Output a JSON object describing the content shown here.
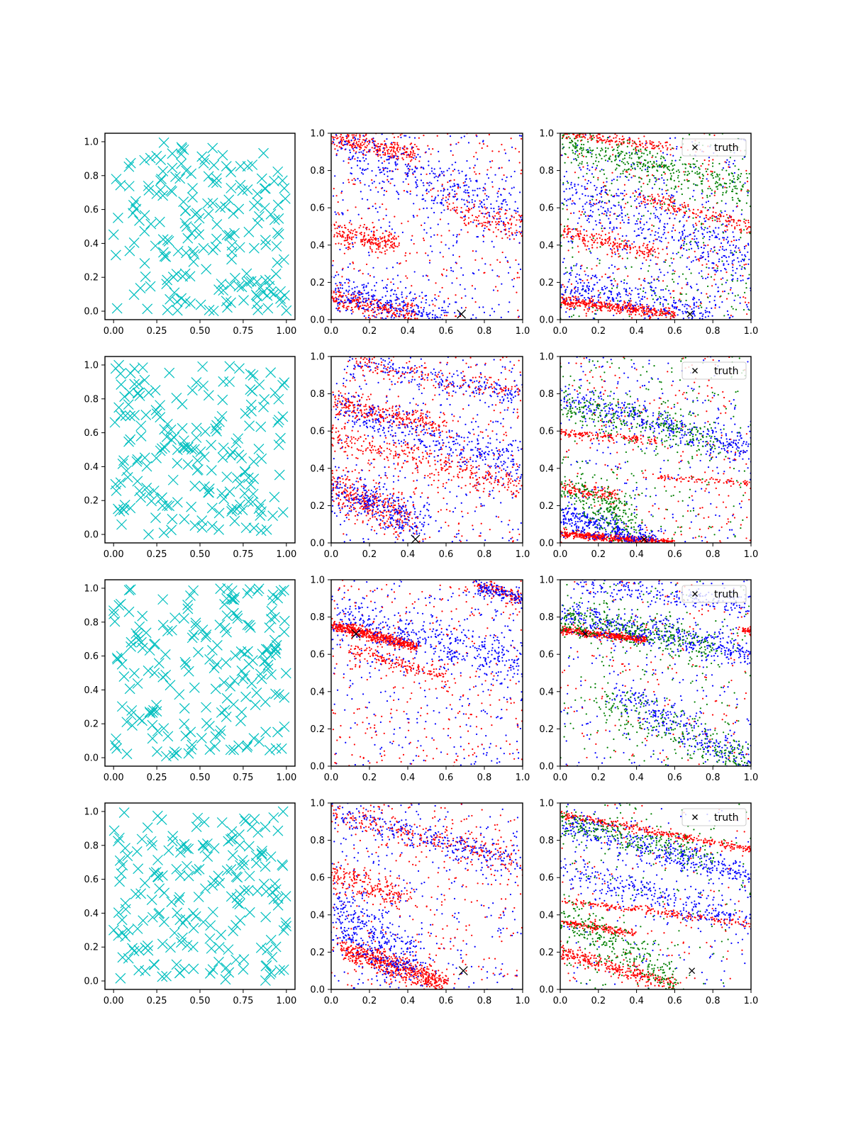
{
  "figure": {
    "layout": "4x3 grid of scatter panels",
    "colors": {
      "prior": "#00bfbf",
      "series_a": "#0000ff",
      "series_b": "#ff0000",
      "series_c": "#008000",
      "truth": "#000000"
    }
  },
  "legend_label": "truth",
  "rows": [
    {
      "truth": [
        0.68,
        0.03
      ]
    },
    {
      "truth": [
        0.44,
        0.02
      ]
    },
    {
      "truth": [
        0.13,
        0.71
      ]
    },
    {
      "truth": [
        0.69,
        0.1
      ]
    }
  ],
  "chart_data": [
    {
      "panel": "r1c1",
      "type": "scatter",
      "marker": "x",
      "color": "#00bfbf",
      "series_count": 1,
      "approx_points": 200,
      "distribution": "uniform",
      "xlim": [
        -0.05,
        1.05
      ],
      "ylim": [
        -0.05,
        1.05
      ],
      "xticks": [
        "0.00",
        "0.25",
        "0.50",
        "0.75",
        "1.00"
      ],
      "yticks": [
        "0.0",
        "0.2",
        "0.4",
        "0.6",
        "0.8",
        "1.0"
      ]
    },
    {
      "panel": "r1c2",
      "type": "scatter",
      "marker": "dot",
      "series_colors": [
        "#0000ff",
        "#ff0000"
      ],
      "truth": [
        0.68,
        0.03
      ],
      "xlim": [
        0,
        1
      ],
      "ylim": [
        0,
        1
      ],
      "xticks": [
        "0.0",
        "0.2",
        "0.4",
        "0.6",
        "0.8",
        "1.0"
      ],
      "yticks": [
        "0.0",
        "0.2",
        "0.4",
        "0.6",
        "0.8",
        "1.0"
      ],
      "bands": [
        {
          "x0": 0.0,
          "y0": 0.98,
          "x1": 0.45,
          "y1": 0.88,
          "spread": 0.03,
          "n": 260,
          "color": "#ff0000"
        },
        {
          "x0": 0.0,
          "y0": 0.47,
          "x1": 0.35,
          "y1": 0.4,
          "spread": 0.03,
          "n": 220,
          "color": "#ff0000"
        },
        {
          "x0": 0.0,
          "y0": 0.12,
          "x1": 0.45,
          "y1": 0.02,
          "spread": 0.03,
          "n": 260,
          "color": "#ff0000"
        },
        {
          "x0": 0.0,
          "y0": 0.95,
          "x1": 1.0,
          "y1": 0.55,
          "spread": 0.07,
          "n": 380,
          "color": "#0000ff"
        },
        {
          "x0": 0.0,
          "y0": 0.15,
          "x1": 0.6,
          "y1": 0.02,
          "spread": 0.05,
          "n": 300,
          "color": "#0000ff"
        },
        {
          "x0": 0.6,
          "y0": 0.6,
          "x1": 1.0,
          "y1": 0.5,
          "spread": 0.04,
          "n": 120,
          "color": "#ff0000"
        }
      ],
      "noise": {
        "n": 550,
        "colors": [
          "#0000ff",
          "#ff0000"
        ]
      }
    },
    {
      "panel": "r1c3",
      "type": "scatter",
      "marker": "dot",
      "series_colors": [
        "#0000ff",
        "#ff0000",
        "#008000"
      ],
      "truth": [
        0.68,
        0.03
      ],
      "legend": "top-right",
      "xlim": [
        0,
        1
      ],
      "ylim": [
        0,
        1
      ],
      "xticks": [
        "0.0",
        "0.2",
        "0.4",
        "0.6",
        "0.8",
        "1.0"
      ],
      "yticks": [
        "0.0",
        "0.2",
        "0.4",
        "0.6",
        "0.8",
        "1.0"
      ],
      "bands": [
        {
          "x0": 0.0,
          "y0": 0.1,
          "x1": 0.6,
          "y1": 0.03,
          "spread": 0.015,
          "n": 400,
          "color": "#ff0000"
        },
        {
          "x0": 0.0,
          "y0": 0.48,
          "x1": 0.5,
          "y1": 0.35,
          "spread": 0.02,
          "n": 180,
          "color": "#ff0000"
        },
        {
          "x0": 0.4,
          "y0": 0.66,
          "x1": 1.0,
          "y1": 0.5,
          "spread": 0.02,
          "n": 160,
          "color": "#ff0000"
        },
        {
          "x0": 0.0,
          "y0": 1.0,
          "x1": 0.6,
          "y1": 0.92,
          "spread": 0.015,
          "n": 160,
          "color": "#ff0000"
        },
        {
          "x0": 0.0,
          "y0": 0.95,
          "x1": 1.0,
          "y1": 0.7,
          "spread": 0.05,
          "n": 400,
          "color": "#008000"
        },
        {
          "x0": 0.0,
          "y0": 0.7,
          "x1": 1.0,
          "y1": 0.3,
          "spread": 0.08,
          "n": 400,
          "color": "#0000ff"
        },
        {
          "x0": 0.0,
          "y0": 0.2,
          "x1": 0.8,
          "y1": 0.02,
          "spread": 0.05,
          "n": 300,
          "color": "#0000ff"
        }
      ],
      "noise": {
        "n": 900,
        "colors": [
          "#0000ff",
          "#008000",
          "#ff0000"
        ]
      }
    },
    {
      "panel": "r2c1",
      "type": "scatter",
      "marker": "x",
      "color": "#00bfbf",
      "series_count": 1,
      "approx_points": 200,
      "distribution": "uniform",
      "xlim": [
        -0.05,
        1.05
      ],
      "ylim": [
        -0.05,
        1.05
      ],
      "xticks": [
        "0.00",
        "0.25",
        "0.50",
        "0.75",
        "1.00"
      ],
      "yticks": [
        "0.0",
        "0.2",
        "0.4",
        "0.6",
        "0.8",
        "1.0"
      ]
    },
    {
      "panel": "r2c2",
      "type": "scatter",
      "marker": "dot",
      "series_colors": [
        "#0000ff",
        "#ff0000"
      ],
      "truth": [
        0.44,
        0.02
      ],
      "xlim": [
        0,
        1
      ],
      "ylim": [
        0,
        1
      ],
      "xticks": [
        "0.0",
        "0.2",
        "0.4",
        "0.6",
        "0.8",
        "1.0"
      ],
      "yticks": [
        "0.0",
        "0.2",
        "0.4",
        "0.6",
        "0.8",
        "1.0"
      ],
      "bands": [
        {
          "x0": 0.0,
          "y0": 0.76,
          "x1": 0.6,
          "y1": 0.62,
          "spread": 0.03,
          "n": 280,
          "color": "#ff0000"
        },
        {
          "x0": 0.0,
          "y0": 0.58,
          "x1": 1.0,
          "y1": 0.3,
          "spread": 0.04,
          "n": 320,
          "color": "#ff0000"
        },
        {
          "x0": 0.0,
          "y0": 0.3,
          "x1": 0.4,
          "y1": 0.12,
          "spread": 0.05,
          "n": 300,
          "color": "#ff0000"
        },
        {
          "x0": 0.1,
          "y0": 0.98,
          "x1": 1.0,
          "y1": 0.78,
          "spread": 0.03,
          "n": 200,
          "color": "#0000ff"
        },
        {
          "x0": 0.0,
          "y0": 0.75,
          "x1": 1.0,
          "y1": 0.4,
          "spread": 0.05,
          "n": 350,
          "color": "#0000ff"
        },
        {
          "x0": 0.0,
          "y0": 0.3,
          "x1": 0.5,
          "y1": 0.1,
          "spread": 0.06,
          "n": 300,
          "color": "#0000ff"
        },
        {
          "x0": 0.1,
          "y0": 0.98,
          "x1": 1.0,
          "y1": 0.8,
          "spread": 0.03,
          "n": 150,
          "color": "#ff0000"
        }
      ],
      "noise": {
        "n": 600,
        "colors": [
          "#0000ff",
          "#ff0000"
        ]
      }
    },
    {
      "panel": "r2c3",
      "type": "scatter",
      "marker": "dot",
      "series_colors": [
        "#0000ff",
        "#ff0000",
        "#008000"
      ],
      "truth": [
        0.44,
        0.02
      ],
      "legend": "top-right",
      "xlim": [
        0,
        1
      ],
      "ylim": [
        0,
        1
      ],
      "xticks": [
        "0.0",
        "0.2",
        "0.4",
        "0.6",
        "0.8",
        "1.0"
      ],
      "yticks": [
        "0.0",
        "0.2",
        "0.4",
        "0.6",
        "0.8",
        "1.0"
      ],
      "bands": [
        {
          "x0": 0.0,
          "y0": 0.05,
          "x1": 0.6,
          "y1": 0.0,
          "spread": 0.01,
          "n": 500,
          "color": "#ff0000"
        },
        {
          "x0": 0.0,
          "y0": 0.59,
          "x1": 0.5,
          "y1": 0.55,
          "spread": 0.01,
          "n": 150,
          "color": "#ff0000"
        },
        {
          "x0": 0.0,
          "y0": 0.3,
          "x1": 0.3,
          "y1": 0.25,
          "spread": 0.02,
          "n": 120,
          "color": "#ff0000"
        },
        {
          "x0": 0.5,
          "y0": 0.35,
          "x1": 1.0,
          "y1": 0.32,
          "spread": 0.01,
          "n": 80,
          "color": "#ff0000"
        },
        {
          "x0": 0.0,
          "y0": 0.78,
          "x1": 1.0,
          "y1": 0.5,
          "spread": 0.04,
          "n": 380,
          "color": "#0000ff"
        },
        {
          "x0": 0.0,
          "y0": 0.15,
          "x1": 0.5,
          "y1": 0.0,
          "spread": 0.04,
          "n": 350,
          "color": "#0000ff"
        },
        {
          "x0": 0.0,
          "y0": 0.75,
          "x1": 0.8,
          "y1": 0.55,
          "spread": 0.05,
          "n": 280,
          "color": "#008000"
        },
        {
          "x0": 0.0,
          "y0": 0.3,
          "x1": 0.4,
          "y1": 0.1,
          "spread": 0.06,
          "n": 250,
          "color": "#008000"
        }
      ],
      "noise": {
        "n": 700,
        "colors": [
          "#0000ff",
          "#008000",
          "#ff0000"
        ]
      }
    },
    {
      "panel": "r3c1",
      "type": "scatter",
      "marker": "x",
      "color": "#00bfbf",
      "series_count": 1,
      "approx_points": 200,
      "distribution": "uniform",
      "xlim": [
        -0.05,
        1.05
      ],
      "ylim": [
        -0.05,
        1.05
      ],
      "xticks": [
        "0.00",
        "0.25",
        "0.50",
        "0.75",
        "1.00"
      ],
      "yticks": [
        "0.0",
        "0.2",
        "0.4",
        "0.6",
        "0.8",
        "1.0"
      ]
    },
    {
      "panel": "r3c2",
      "type": "scatter",
      "marker": "dot",
      "series_colors": [
        "#0000ff",
        "#ff0000"
      ],
      "truth": [
        0.13,
        0.71
      ],
      "xlim": [
        0,
        1
      ],
      "ylim": [
        0,
        1
      ],
      "xticks": [
        "0.0",
        "0.2",
        "0.4",
        "0.6",
        "0.8",
        "1.0"
      ],
      "yticks": [
        "0.0",
        "0.2",
        "0.4",
        "0.6",
        "0.8",
        "1.0"
      ],
      "bands": [
        {
          "x0": 0.0,
          "y0": 0.76,
          "x1": 0.45,
          "y1": 0.64,
          "spread": 0.015,
          "n": 550,
          "color": "#ff0000"
        },
        {
          "x0": 0.1,
          "y0": 0.62,
          "x1": 0.6,
          "y1": 0.48,
          "spread": 0.02,
          "n": 150,
          "color": "#ff0000"
        },
        {
          "x0": 0.75,
          "y0": 0.97,
          "x1": 1.0,
          "y1": 0.9,
          "spread": 0.02,
          "n": 120,
          "color": "#ff0000"
        },
        {
          "x0": 0.0,
          "y0": 0.8,
          "x1": 1.0,
          "y1": 0.55,
          "spread": 0.06,
          "n": 400,
          "color": "#0000ff"
        },
        {
          "x0": 0.75,
          "y0": 0.97,
          "x1": 1.0,
          "y1": 0.9,
          "spread": 0.02,
          "n": 120,
          "color": "#0000ff"
        }
      ],
      "noise": {
        "n": 650,
        "colors": [
          "#0000ff",
          "#ff0000"
        ]
      }
    },
    {
      "panel": "r3c3",
      "type": "scatter",
      "marker": "dot",
      "series_colors": [
        "#0000ff",
        "#ff0000",
        "#008000"
      ],
      "truth": [
        0.13,
        0.71
      ],
      "legend": "top-right",
      "xlim": [
        0,
        1
      ],
      "ylim": [
        0,
        1
      ],
      "xticks": [
        "0.0",
        "0.2",
        "0.4",
        "0.6",
        "0.8",
        "1.0"
      ],
      "yticks": [
        "0.0",
        "0.2",
        "0.4",
        "0.6",
        "0.8",
        "1.0"
      ],
      "bands": [
        {
          "x0": 0.0,
          "y0": 0.73,
          "x1": 0.45,
          "y1": 0.68,
          "spread": 0.01,
          "n": 450,
          "color": "#ff0000"
        },
        {
          "x0": 0.95,
          "y0": 0.73,
          "x1": 1.0,
          "y1": 0.72,
          "spread": 0.01,
          "n": 40,
          "color": "#ff0000"
        },
        {
          "x0": 0.0,
          "y0": 0.82,
          "x1": 1.0,
          "y1": 0.6,
          "spread": 0.04,
          "n": 450,
          "color": "#0000ff"
        },
        {
          "x0": 0.1,
          "y0": 0.98,
          "x1": 1.0,
          "y1": 0.86,
          "spread": 0.03,
          "n": 220,
          "color": "#0000ff"
        },
        {
          "x0": 0.3,
          "y0": 0.4,
          "x1": 1.0,
          "y1": 0.0,
          "spread": 0.05,
          "n": 300,
          "color": "#0000ff"
        },
        {
          "x0": 0.0,
          "y0": 0.8,
          "x1": 0.8,
          "y1": 0.65,
          "spread": 0.05,
          "n": 350,
          "color": "#008000"
        },
        {
          "x0": 0.2,
          "y0": 0.35,
          "x1": 1.0,
          "y1": 0.02,
          "spread": 0.06,
          "n": 250,
          "color": "#008000"
        }
      ],
      "noise": {
        "n": 550,
        "colors": [
          "#0000ff",
          "#008000",
          "#ff0000"
        ]
      }
    },
    {
      "panel": "r4c1",
      "type": "scatter",
      "marker": "x",
      "color": "#00bfbf",
      "series_count": 1,
      "approx_points": 200,
      "distribution": "uniform",
      "xlim": [
        -0.05,
        1.05
      ],
      "ylim": [
        -0.05,
        1.05
      ],
      "xticks": [
        "0.00",
        "0.25",
        "0.50",
        "0.75",
        "1.00"
      ],
      "yticks": [
        "0.0",
        "0.2",
        "0.4",
        "0.6",
        "0.8",
        "1.0"
      ]
    },
    {
      "panel": "r4c2",
      "type": "scatter",
      "marker": "dot",
      "series_colors": [
        "#0000ff",
        "#ff0000"
      ],
      "truth": [
        0.69,
        0.1
      ],
      "xlim": [
        0,
        1
      ],
      "ylim": [
        0,
        1
      ],
      "xticks": [
        "0.0",
        "0.2",
        "0.4",
        "0.6",
        "0.8",
        "1.0"
      ],
      "yticks": [
        "0.0",
        "0.2",
        "0.4",
        "0.6",
        "0.8",
        "1.0"
      ],
      "bands": [
        {
          "x0": 0.05,
          "y0": 0.22,
          "x1": 0.6,
          "y1": 0.03,
          "spread": 0.03,
          "n": 600,
          "color": "#ff0000"
        },
        {
          "x0": 0.0,
          "y0": 0.95,
          "x1": 1.0,
          "y1": 0.68,
          "spread": 0.04,
          "n": 250,
          "color": "#ff0000"
        },
        {
          "x0": 0.0,
          "y0": 0.95,
          "x1": 1.0,
          "y1": 0.68,
          "spread": 0.04,
          "n": 250,
          "color": "#0000ff"
        },
        {
          "x0": 0.0,
          "y0": 0.4,
          "x1": 0.45,
          "y1": 0.1,
          "spread": 0.08,
          "n": 400,
          "color": "#0000ff"
        },
        {
          "x0": 0.0,
          "y0": 0.62,
          "x1": 0.4,
          "y1": 0.48,
          "spread": 0.04,
          "n": 200,
          "color": "#ff0000"
        }
      ],
      "noise": {
        "n": 550,
        "colors": [
          "#0000ff",
          "#ff0000"
        ]
      }
    },
    {
      "panel": "r4c3",
      "type": "scatter",
      "marker": "dot",
      "series_colors": [
        "#0000ff",
        "#ff0000",
        "#008000"
      ],
      "truth": [
        0.69,
        0.1
      ],
      "legend": "top-right",
      "xlim": [
        0,
        1
      ],
      "ylim": [
        0,
        1
      ],
      "xticks": [
        "0.0",
        "0.2",
        "0.4",
        "0.6",
        "0.8",
        "1.0"
      ],
      "yticks": [
        "0.0",
        "0.2",
        "0.4",
        "0.6",
        "0.8",
        "1.0"
      ],
      "bands": [
        {
          "x0": 0.0,
          "y0": 0.94,
          "x1": 1.0,
          "y1": 0.75,
          "spread": 0.01,
          "n": 300,
          "color": "#ff0000"
        },
        {
          "x0": 0.0,
          "y0": 0.48,
          "x1": 1.0,
          "y1": 0.35,
          "spread": 0.01,
          "n": 200,
          "color": "#ff0000"
        },
        {
          "x0": 0.0,
          "y0": 0.36,
          "x1": 0.4,
          "y1": 0.3,
          "spread": 0.01,
          "n": 180,
          "color": "#ff0000"
        },
        {
          "x0": 0.0,
          "y0": 0.2,
          "x1": 0.6,
          "y1": 0.02,
          "spread": 0.02,
          "n": 300,
          "color": "#ff0000"
        },
        {
          "x0": 0.0,
          "y0": 0.9,
          "x1": 1.0,
          "y1": 0.6,
          "spread": 0.04,
          "n": 400,
          "color": "#0000ff"
        },
        {
          "x0": 0.0,
          "y0": 0.65,
          "x1": 1.0,
          "y1": 0.35,
          "spread": 0.05,
          "n": 300,
          "color": "#0000ff"
        },
        {
          "x0": 0.0,
          "y0": 0.9,
          "x1": 0.8,
          "y1": 0.7,
          "spread": 0.04,
          "n": 250,
          "color": "#008000"
        },
        {
          "x0": 0.0,
          "y0": 0.4,
          "x1": 0.6,
          "y1": 0.05,
          "spread": 0.06,
          "n": 300,
          "color": "#008000"
        }
      ],
      "noise": {
        "n": 450,
        "colors": [
          "#0000ff",
          "#008000",
          "#ff0000"
        ]
      }
    }
  ]
}
